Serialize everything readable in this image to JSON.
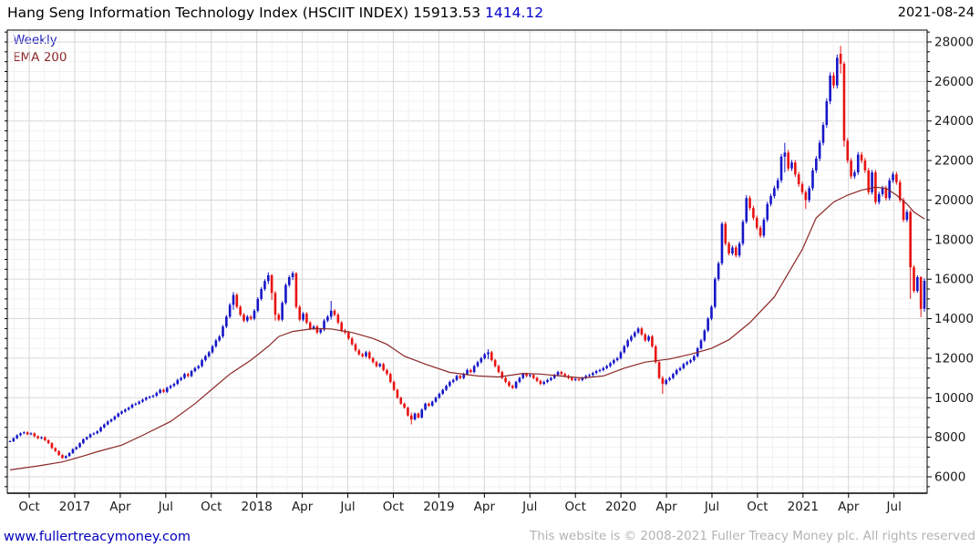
{
  "header": {
    "title_main": "Hang Seng Information Technology Index (HSCIIT INDEX) 15913.53",
    "title_change": "1414.12",
    "date": "2021-08-24"
  },
  "legend": {
    "timeframe": "Weekly",
    "overlay": "EMA 200"
  },
  "footer": {
    "site": "www.fullertreacymoney.com",
    "copyright": "This website is © 2008-2021 Fuller Treacy Money plc. All rights reserved"
  },
  "colors": {
    "up_candle": "#1616c8",
    "down_candle": "#e81212",
    "ema_line": "#8b2727",
    "grid_major": "#d7d7d7",
    "grid_minor": "#f1f1f1",
    "frame": "#000000",
    "axis_text": "#1a1a1a"
  },
  "chart_data": {
    "type": "candlestick",
    "title": "Hang Seng Information Technology Index (HSCIIT INDEX)",
    "last_close": 15913.53,
    "change_value": 1414.12,
    "timeframe": "Weekly",
    "overlay": "EMA 200",
    "y_axis": {
      "label_min": 6000,
      "label_max": 28000,
      "label_step": 2000,
      "minor_step": 500,
      "side": "right"
    },
    "x_axis": {
      "tick_labels": [
        "Oct",
        "2017",
        "Apr",
        "Jul",
        "Oct",
        "2018",
        "Apr",
        "Jul",
        "Oct",
        "2019",
        "Apr",
        "Jul",
        "Oct",
        "2020",
        "Apr",
        "Jul",
        "Oct",
        "2021",
        "Apr",
        "Jul"
      ],
      "first_tick_bar": 5.5,
      "bars_per_quarter": 13.0421,
      "bars_per_month": 4.347,
      "first_month_bar": 1.153
    },
    "weekly_closes": [
      7800,
      7950,
      8100,
      8200,
      8250,
      8150,
      8200,
      8050,
      7950,
      8000,
      7850,
      7700,
      7450,
      7300,
      7100,
      6950,
      7050,
      7200,
      7400,
      7500,
      7700,
      7900,
      8000,
      8150,
      8200,
      8300,
      8500,
      8650,
      8800,
      8900,
      9050,
      9200,
      9300,
      9400,
      9500,
      9650,
      9700,
      9800,
      9900,
      10000,
      10050,
      10100,
      10250,
      10400,
      10300,
      10500,
      10600,
      10700,
      10900,
      11000,
      11200,
      11100,
      11350,
      11500,
      11600,
      11900,
      12100,
      12300,
      12600,
      12900,
      13100,
      13600,
      14100,
      14700,
      15200,
      14600,
      14200,
      13900,
      14100,
      14000,
      14400,
      15000,
      15500,
      15900,
      16200,
      15300,
      14200,
      13950,
      14800,
      15700,
      16100,
      16300,
      14600,
      13950,
      14250,
      13800,
      13500,
      13600,
      13300,
      13450,
      13900,
      14100,
      14400,
      14200,
      13800,
      13400,
      13300,
      13000,
      12700,
      12400,
      12200,
      12100,
      12300,
      12000,
      11800,
      11600,
      11700,
      11400,
      11200,
      10800,
      10400,
      10000,
      9700,
      9500,
      9100,
      8900,
      9200,
      9000,
      9400,
      9700,
      9600,
      9800,
      10000,
      10200,
      10400,
      10600,
      10800,
      10900,
      11100,
      11000,
      11200,
      11400,
      11300,
      11600,
      11800,
      12000,
      12200,
      12300,
      11900,
      11600,
      11300,
      11000,
      10800,
      10600,
      10500,
      10800,
      11000,
      11200,
      11100,
      11150,
      11000,
      10850,
      10700,
      10800,
      10900,
      11000,
      11150,
      11300,
      11200,
      11100,
      11000,
      10900,
      10950,
      10900,
      11000,
      11100,
      11150,
      11250,
      11350,
      11400,
      11500,
      11600,
      11750,
      11900,
      12000,
      12300,
      12600,
      12900,
      13100,
      13300,
      13500,
      13200,
      12900,
      13100,
      12600,
      11800,
      11000,
      10700,
      10900,
      11000,
      11200,
      11400,
      11500,
      11700,
      11800,
      11900,
      12100,
      12500,
      12900,
      13400,
      14000,
      14600,
      16000,
      16800,
      18800,
      17800,
      17300,
      17600,
      17200,
      17800,
      18900,
      20100,
      19600,
      19100,
      18600,
      18200,
      19000,
      19800,
      20200,
      20600,
      21000,
      22200,
      22400,
      21600,
      21900,
      21300,
      20800,
      20400,
      20000,
      20600,
      21500,
      22100,
      22900,
      23800,
      25000,
      26300,
      25800,
      27200,
      26900,
      23000,
      22000,
      21200,
      21400,
      22300,
      22000,
      21500,
      20400,
      21400,
      19900,
      20300,
      20600,
      20100,
      21000,
      21300,
      20900,
      20000,
      19000,
      19400,
      16600,
      15400,
      16100,
      14500,
      15913.53
    ],
    "default_wick_frac": 0.006,
    "ohlc_overrides": {
      "64": [
        14700,
        15350,
        14450,
        15200
      ],
      "74": [
        15900,
        16350,
        15750,
        16200
      ],
      "75": [
        16200,
        16250,
        14950,
        15300
      ],
      "76": [
        15300,
        15400,
        13900,
        14200
      ],
      "81": [
        16100,
        16400,
        15950,
        16300
      ],
      "82": [
        16300,
        16350,
        14500,
        14600
      ],
      "92": [
        14100,
        14900,
        13950,
        14400
      ],
      "115": [
        9100,
        9250,
        8650,
        8900
      ],
      "137": [
        12200,
        12450,
        11950,
        12300
      ],
      "187": [
        11000,
        11100,
        10200,
        10700
      ],
      "204": [
        16800,
        18900,
        16700,
        18800
      ],
      "211": [
        18900,
        20250,
        18800,
        20100
      ],
      "222": [
        22200,
        22900,
        21400,
        22400
      ],
      "228": [
        20400,
        20500,
        19550,
        20000
      ],
      "238": [
        27400,
        27800,
        26400,
        26900
      ],
      "239": [
        26900,
        27000,
        22700,
        23000
      ],
      "258": [
        19400,
        19500,
        15000,
        16600
      ],
      "261": [
        16100,
        16150,
        14080,
        14500
      ],
      "262": [
        14500,
        16050,
        14350,
        15913.53
      ]
    },
    "ema200": [
      [
        0,
        6350
      ],
      [
        8,
        6550
      ],
      [
        15,
        6750
      ],
      [
        21,
        7050
      ],
      [
        25,
        7270
      ],
      [
        32,
        7600
      ],
      [
        38,
        8100
      ],
      [
        46,
        8800
      ],
      [
        53,
        9700
      ],
      [
        58,
        10450
      ],
      [
        63,
        11200
      ],
      [
        69,
        11900
      ],
      [
        74,
        12600
      ],
      [
        77,
        13100
      ],
      [
        81,
        13350
      ],
      [
        87,
        13500
      ],
      [
        92,
        13480
      ],
      [
        98,
        13300
      ],
      [
        104,
        13000
      ],
      [
        108,
        12700
      ],
      [
        113,
        12100
      ],
      [
        119,
        11700
      ],
      [
        126,
        11280
      ],
      [
        134,
        11100
      ],
      [
        140,
        11050
      ],
      [
        147,
        11230
      ],
      [
        152,
        11200
      ],
      [
        159,
        11080
      ],
      [
        164,
        11000
      ],
      [
        170,
        11100
      ],
      [
        176,
        11500
      ],
      [
        182,
        11800
      ],
      [
        189,
        11960
      ],
      [
        195,
        12200
      ],
      [
        201,
        12500
      ],
      [
        206,
        12930
      ],
      [
        212,
        13800
      ],
      [
        219,
        15100
      ],
      [
        223,
        16300
      ],
      [
        227,
        17500
      ],
      [
        231,
        19100
      ],
      [
        236,
        19900
      ],
      [
        240,
        20250
      ],
      [
        244,
        20500
      ],
      [
        248,
        20650
      ],
      [
        251,
        20600
      ],
      [
        254,
        20250
      ],
      [
        257,
        19800
      ],
      [
        259,
        19400
      ],
      [
        262,
        19050
      ]
    ]
  }
}
